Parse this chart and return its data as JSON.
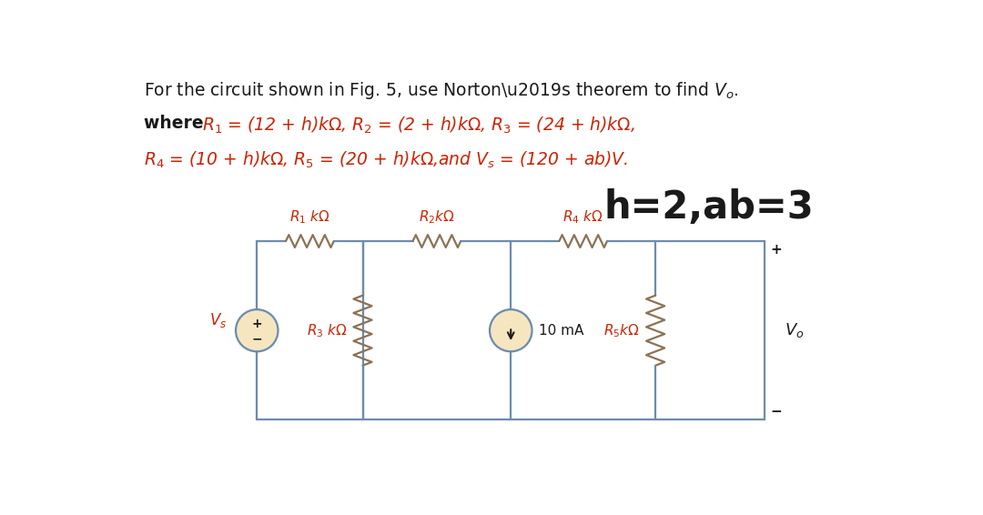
{
  "bg_color": "#ffffff",
  "text_black": "#1a1a1a",
  "text_red": "#cc2200",
  "wire_color": "#6b8cae",
  "component_color": "#8b7355",
  "title": "For the circuit shown in Fig. 5, use Norton’s theorem to find $V_o$.",
  "line2_bold": "where ",
  "line2_red": "$R_1$ = (12 + h)k$\\Omega$, $R_2$ = (2 + h)k$\\Omega$, $R_3$ = (24 + h)k$\\Omega$,",
  "line3_red": "$R_4$ = (10 + h)k$\\Omega$, $R_5$ = (20 + h)k$\\Omega$,and $V_s$ = (120 + ab)V.",
  "hval": "h=2,ab=3",
  "label_r1": "$R_1$ k$\\Omega$",
  "label_r2": "$R_2$k$\\Omega$",
  "label_r3": "$R_3$ k$\\Omega$",
  "label_r4": "$R_4$ k$\\Omega$",
  "label_r5": "$R_5$k$\\Omega$",
  "label_vs": "$V_s$",
  "label_vo": "$V_o$",
  "label_10ma": "10 mA"
}
